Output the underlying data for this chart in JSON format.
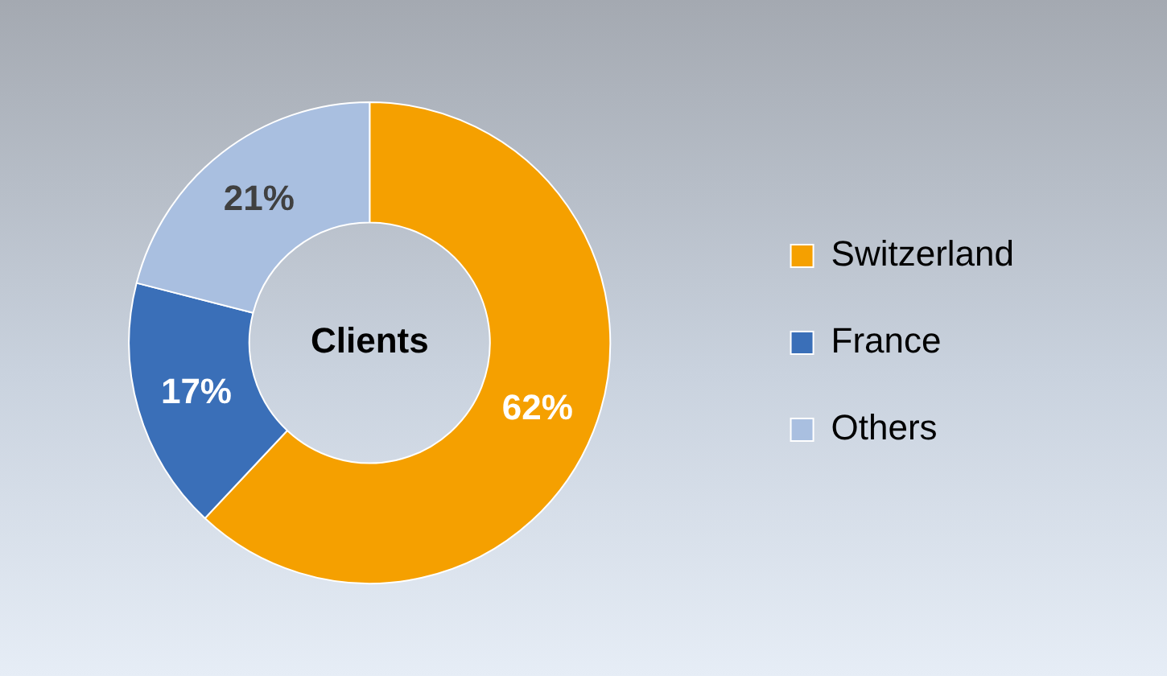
{
  "chart_data": {
    "type": "donut",
    "title": "Clients",
    "categories": [
      "Switzerland",
      "France",
      "Others"
    ],
    "values": [
      62,
      17,
      21
    ],
    "value_labels": [
      "62%",
      "17%",
      "21%"
    ],
    "colors": [
      "#f5a000",
      "#3a6fb8",
      "#a9bfe0"
    ],
    "legend": "right"
  }
}
